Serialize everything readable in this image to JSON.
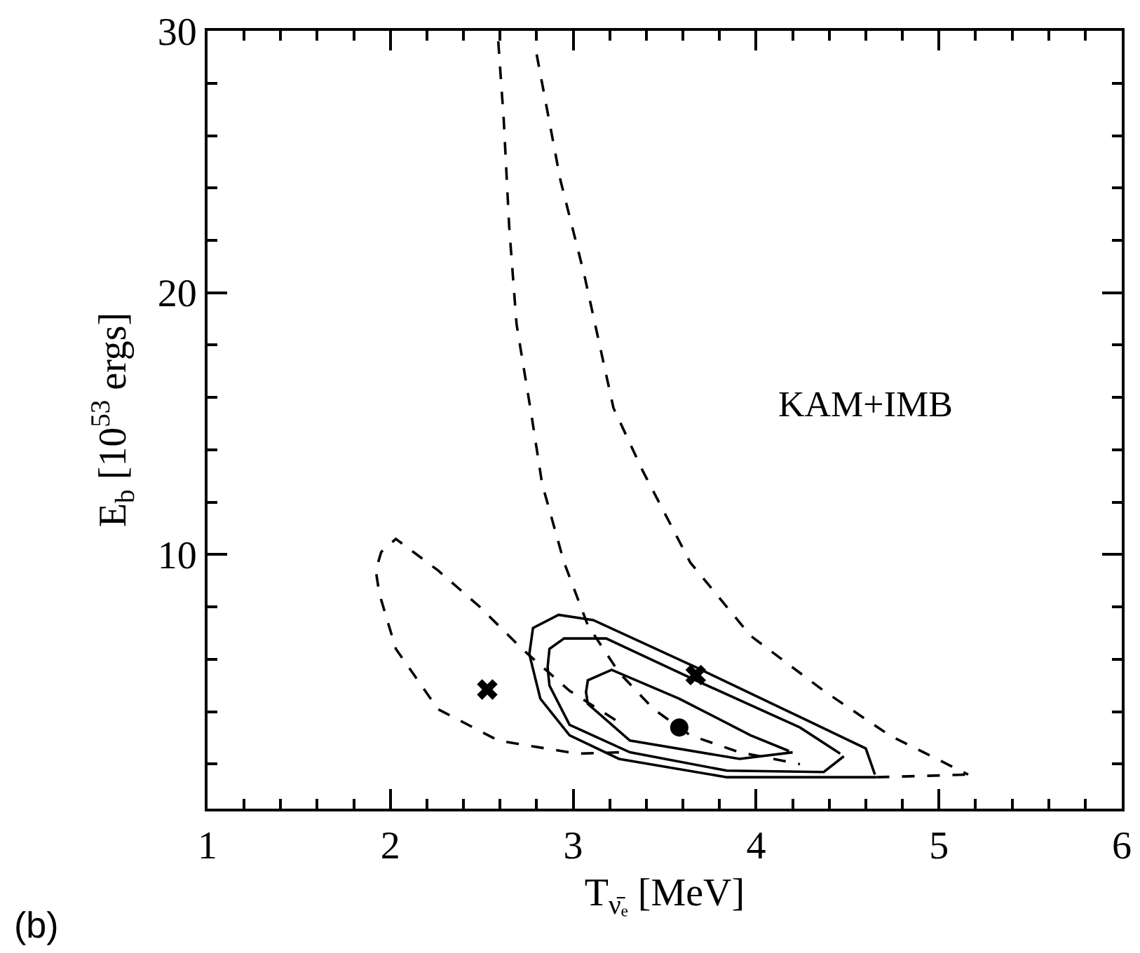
{
  "chart_data": {
    "type": "line",
    "xlabel": "T$_{ν̄ₑ}$ [MeV]",
    "ylabel": "E$_{b}$ [10$^{53}$ ergs]",
    "annotations": [
      "KAM+IMB",
      "(b)"
    ],
    "xlim": [
      1,
      6
    ],
    "ylim": [
      0.3,
      30
    ],
    "xticks": [
      1,
      {
        "value": 1.2,
        "label": null
      },
      {
        "value": 1.4,
        "label": null
      },
      {
        "value": 1.6,
        "label": null
      },
      {
        "value": 1.8,
        "label": null
      },
      2,
      {
        "value": 2.2,
        "label": null
      },
      {
        "value": 2.4,
        "label": null
      },
      {
        "value": 2.6,
        "label": null
      },
      {
        "value": 2.8,
        "label": null
      },
      3,
      {
        "value": 3.2,
        "label": null
      },
      {
        "value": 3.4,
        "label": null
      },
      {
        "value": 3.6,
        "label": null
      },
      {
        "value": 3.8,
        "label": null
      },
      4,
      {
        "value": 4.2,
        "label": null
      },
      {
        "value": 4.4,
        "label": null
      },
      {
        "value": 4.6,
        "label": null
      },
      {
        "value": 4.8,
        "label": null
      },
      5,
      {
        "value": 5.2,
        "label": null
      },
      {
        "value": 5.4,
        "label": null
      },
      {
        "value": 5.6,
        "label": null
      },
      {
        "value": 5.8,
        "label": null
      },
      6
    ],
    "yticks": [
      {
        "value": 2,
        "label": null
      },
      {
        "value": 4,
        "label": null
      },
      {
        "value": 6,
        "label": null
      },
      {
        "value": 8,
        "label": null
      },
      10,
      {
        "value": 12,
        "label": null
      },
      {
        "value": 14,
        "label": null
      },
      {
        "value": 16,
        "label": null
      },
      {
        "value": 18,
        "label": null
      },
      20,
      {
        "value": 22,
        "label": null
      },
      {
        "value": 24,
        "label": null
      },
      {
        "value": 26,
        "label": null
      },
      {
        "value": 28,
        "label": null
      },
      30
    ],
    "series": [
      {
        "color": "#000000",
        "line_style": "dashed",
        "marker": "none",
        "x": [
          2.59,
          2.62,
          2.65,
          2.69,
          2.77,
          2.83,
          2.95,
          3.08,
          3.25,
          3.44,
          3.64,
          3.91,
          4.24
        ],
        "values": [
          29.6,
          26.6,
          22.5,
          18.8,
          15.4,
          12.7,
          9.7,
          7.3,
          5.5,
          4.1,
          3.1,
          2.45,
          2.0
        ]
      },
      {
        "color": "#000000",
        "line_style": "dashed",
        "marker": "none",
        "x": [
          2.8,
          2.93,
          3.06,
          3.22,
          3.38,
          3.64,
          3.97,
          4.37,
          4.73,
          5.16
        ],
        "values": [
          29.1,
          24.3,
          20.7,
          15.6,
          13.2,
          9.7,
          6.9,
          4.8,
          3.1,
          1.6
        ]
      },
      {
        "color": "#000000",
        "line_style": "dashed",
        "marker": "none",
        "x": [
          4.66,
          5.16
        ],
        "values": [
          1.5,
          1.6
        ]
      },
      {
        "color": "#000000",
        "line_style": "dashed",
        "marker": "none",
        "x": [
          3.25,
          3.02,
          2.59,
          2.26,
          2.03,
          1.94,
          1.92,
          1.95,
          2.03,
          2.26,
          2.49,
          2.72,
          2.98,
          3.25
        ],
        "values": [
          2.45,
          2.4,
          2.9,
          4.1,
          6.4,
          8.5,
          9.4,
          10.1,
          10.6,
          9.4,
          8.0,
          6.4,
          4.8,
          3.6
        ]
      },
      {
        "color": "#000000",
        "line_style": "solid",
        "marker": "none",
        "x": [
          4.66,
          3.84,
          3.25,
          2.98,
          2.82,
          2.76,
          2.78,
          2.92,
          3.11,
          3.67,
          4.24,
          4.6,
          4.65
        ],
        "values": [
          1.5,
          1.5,
          2.2,
          3.1,
          4.5,
          6.2,
          7.2,
          7.7,
          7.5,
          5.7,
          3.8,
          2.6,
          1.6
        ]
      },
      {
        "color": "#000000",
        "line_style": "solid",
        "marker": "none",
        "x": [
          4.48,
          4.37,
          3.84,
          3.31,
          2.98,
          2.87,
          2.86,
          2.87,
          2.95,
          3.18,
          3.67,
          4.24,
          4.46
        ],
        "values": [
          2.3,
          1.7,
          1.75,
          2.45,
          3.5,
          5.0,
          5.7,
          6.4,
          6.8,
          6.8,
          5.2,
          3.4,
          2.4
        ]
      },
      {
        "color": "#000000",
        "line_style": "solid",
        "marker": "none",
        "x": [
          4.2,
          3.91,
          3.31,
          3.08,
          3.07,
          3.08,
          3.21,
          3.58,
          3.97,
          4.18
        ],
        "values": [
          2.45,
          2.2,
          2.9,
          4.3,
          4.75,
          5.2,
          5.6,
          4.5,
          3.1,
          2.5
        ]
      },
      {
        "type": "scatter",
        "color": "#000000",
        "marker": "cross",
        "x": [
          2.53,
          3.67
        ],
        "values": [
          4.85,
          5.4
        ]
      },
      {
        "type": "scatter",
        "color": "#000000",
        "marker": "circle",
        "x": [
          3.58
        ],
        "values": [
          3.4
        ]
      }
    ]
  }
}
